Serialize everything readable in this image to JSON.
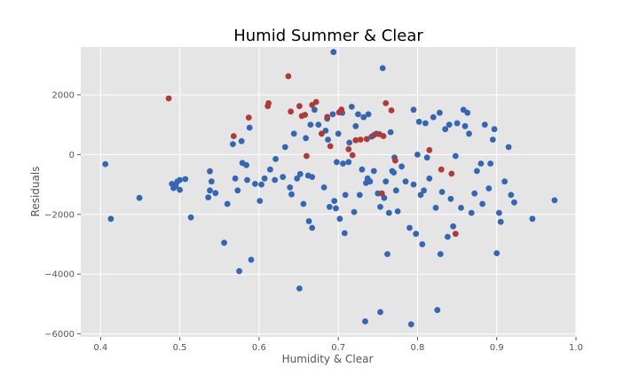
{
  "chart_data": {
    "type": "scatter",
    "title": "Humid Summer & Clear",
    "xlabel": "Humidity & Clear",
    "ylabel": "Residuals",
    "xlim": [
      0.375,
      1.0
    ],
    "ylim": [
      -6100,
      3600
    ],
    "xticks": [
      "0.4",
      "0.5",
      "0.6",
      "0.7",
      "0.8",
      "0.9",
      "1.0"
    ],
    "yticks": [
      "−6000",
      "−4000",
      "−2000",
      "0",
      "2000"
    ],
    "xtick_values": [
      0.4,
      0.5,
      0.6,
      0.7,
      0.8,
      0.9,
      1.0
    ],
    "ytick_values": [
      -6000,
      -4000,
      -2000,
      0,
      2000
    ],
    "grid": true,
    "background": "#e5e5e5",
    "grid_color": "#ffffff",
    "series": [
      {
        "color": "#3366b3",
        "points": [
          [
            0.406,
            -320
          ],
          [
            0.413,
            -2150
          ],
          [
            0.449,
            -1450
          ],
          [
            0.49,
            -980
          ],
          [
            0.492,
            -1120
          ],
          [
            0.495,
            -1050
          ],
          [
            0.497,
            -900
          ],
          [
            0.5,
            -1180
          ],
          [
            0.5,
            -850
          ],
          [
            0.507,
            -820
          ],
          [
            0.514,
            -2100
          ],
          [
            0.536,
            -1430
          ],
          [
            0.538,
            -560
          ],
          [
            0.538,
            -1200
          ],
          [
            0.54,
            -900
          ],
          [
            0.545,
            -1290
          ],
          [
            0.556,
            -2950
          ],
          [
            0.56,
            -1650
          ],
          [
            0.567,
            350
          ],
          [
            0.57,
            -800
          ],
          [
            0.573,
            -1200
          ],
          [
            0.575,
            -3900
          ],
          [
            0.578,
            450
          ],
          [
            0.579,
            -280
          ],
          [
            0.584,
            -350
          ],
          [
            0.585,
            -850
          ],
          [
            0.588,
            900
          ],
          [
            0.59,
            -3520
          ],
          [
            0.595,
            -980
          ],
          [
            0.601,
            -1550
          ],
          [
            0.603,
            -1000
          ],
          [
            0.607,
            -800
          ],
          [
            0.614,
            -500
          ],
          [
            0.62,
            -850
          ],
          [
            0.621,
            -150
          ],
          [
            0.63,
            -750
          ],
          [
            0.633,
            250
          ],
          [
            0.639,
            -1100
          ],
          [
            0.641,
            -1330
          ],
          [
            0.644,
            700
          ],
          [
            0.648,
            -800
          ],
          [
            0.651,
            -4480
          ],
          [
            0.652,
            -650
          ],
          [
            0.656,
            -1650
          ],
          [
            0.659,
            550
          ],
          [
            0.662,
            -700
          ],
          [
            0.663,
            -2230
          ],
          [
            0.665,
            1000
          ],
          [
            0.667,
            -750
          ],
          [
            0.667,
            -2450
          ],
          [
            0.67,
            1500
          ],
          [
            0.675,
            1000
          ],
          [
            0.682,
            -1100
          ],
          [
            0.684,
            800
          ],
          [
            0.686,
            1200
          ],
          [
            0.687,
            500
          ],
          [
            0.689,
            -1750
          ],
          [
            0.693,
            1350
          ],
          [
            0.694,
            3430
          ],
          [
            0.695,
            -1550
          ],
          [
            0.697,
            -1800
          ],
          [
            0.698,
            -250
          ],
          [
            0.7,
            700
          ],
          [
            0.702,
            -2150
          ],
          [
            0.705,
            1400
          ],
          [
            0.706,
            -300
          ],
          [
            0.708,
            -2630
          ],
          [
            0.709,
            -1350
          ],
          [
            0.713,
            -250
          ],
          [
            0.714,
            400
          ],
          [
            0.717,
            1600
          ],
          [
            0.72,
            -1920
          ],
          [
            0.722,
            950
          ],
          [
            0.725,
            1350
          ],
          [
            0.727,
            -1350
          ],
          [
            0.73,
            -500
          ],
          [
            0.732,
            1250
          ],
          [
            0.734,
            -5580
          ],
          [
            0.735,
            -950
          ],
          [
            0.737,
            -800
          ],
          [
            0.738,
            1350
          ],
          [
            0.74,
            -900
          ],
          [
            0.742,
            600
          ],
          [
            0.745,
            -550
          ],
          [
            0.748,
            700
          ],
          [
            0.75,
            -1300
          ],
          [
            0.753,
            -5270
          ],
          [
            0.753,
            -1750
          ],
          [
            0.756,
            2890
          ],
          [
            0.758,
            -1450
          ],
          [
            0.76,
            -900
          ],
          [
            0.762,
            -3330
          ],
          [
            0.764,
            -1950
          ],
          [
            0.766,
            750
          ],
          [
            0.768,
            -550
          ],
          [
            0.77,
            -600
          ],
          [
            0.771,
            -100
          ],
          [
            0.773,
            -1200
          ],
          [
            0.775,
            -1900
          ],
          [
            0.78,
            -400
          ],
          [
            0.785,
            -900
          ],
          [
            0.79,
            -2450
          ],
          [
            0.792,
            -5680
          ],
          [
            0.795,
            -1000
          ],
          [
            0.795,
            1500
          ],
          [
            0.798,
            -2650
          ],
          [
            0.8,
            0
          ],
          [
            0.802,
            1100
          ],
          [
            0.804,
            -1350
          ],
          [
            0.806,
            -3000
          ],
          [
            0.808,
            -1200
          ],
          [
            0.81,
            1050
          ],
          [
            0.812,
            -100
          ],
          [
            0.815,
            -800
          ],
          [
            0.82,
            1250
          ],
          [
            0.823,
            -1780
          ],
          [
            0.825,
            -5200
          ],
          [
            0.828,
            1400
          ],
          [
            0.829,
            -3330
          ],
          [
            0.831,
            -1250
          ],
          [
            0.835,
            850
          ],
          [
            0.838,
            -2750
          ],
          [
            0.84,
            1000
          ],
          [
            0.842,
            -1480
          ],
          [
            0.845,
            -2400
          ],
          [
            0.848,
            -50
          ],
          [
            0.85,
            1050
          ],
          [
            0.855,
            -1780
          ],
          [
            0.858,
            1500
          ],
          [
            0.86,
            950
          ],
          [
            0.863,
            1400
          ],
          [
            0.865,
            700
          ],
          [
            0.868,
            -1950
          ],
          [
            0.872,
            -1300
          ],
          [
            0.875,
            -550
          ],
          [
            0.88,
            -300
          ],
          [
            0.882,
            -1650
          ],
          [
            0.885,
            1000
          ],
          [
            0.89,
            -1130
          ],
          [
            0.892,
            -300
          ],
          [
            0.895,
            500
          ],
          [
            0.897,
            850
          ],
          [
            0.9,
            -3300
          ],
          [
            0.903,
            -1950
          ],
          [
            0.905,
            -2250
          ],
          [
            0.91,
            -900
          ],
          [
            0.915,
            250
          ],
          [
            0.918,
            -1350
          ],
          [
            0.922,
            -1600
          ],
          [
            0.945,
            -2150
          ],
          [
            0.973,
            -1530
          ]
        ]
      },
      {
        "color": "#b03a3a",
        "points": [
          [
            0.486,
            1880
          ],
          [
            0.568,
            620
          ],
          [
            0.587,
            1240
          ],
          [
            0.611,
            1620
          ],
          [
            0.612,
            1720
          ],
          [
            0.637,
            2620
          ],
          [
            0.64,
            1440
          ],
          [
            0.651,
            1620
          ],
          [
            0.654,
            1290
          ],
          [
            0.658,
            1330
          ],
          [
            0.66,
            -50
          ],
          [
            0.667,
            1660
          ],
          [
            0.672,
            1760
          ],
          [
            0.679,
            700
          ],
          [
            0.686,
            1260
          ],
          [
            0.69,
            280
          ],
          [
            0.701,
            1410
          ],
          [
            0.704,
            1510
          ],
          [
            0.713,
            180
          ],
          [
            0.718,
            -20
          ],
          [
            0.722,
            480
          ],
          [
            0.728,
            500
          ],
          [
            0.736,
            520
          ],
          [
            0.745,
            650
          ],
          [
            0.752,
            680
          ],
          [
            0.757,
            620
          ],
          [
            0.76,
            1720
          ],
          [
            0.755,
            -1300
          ],
          [
            0.767,
            1480
          ],
          [
            0.772,
            -200
          ],
          [
            0.815,
            150
          ],
          [
            0.83,
            -500
          ],
          [
            0.843,
            -640
          ],
          [
            0.848,
            -2650
          ]
        ]
      }
    ]
  }
}
